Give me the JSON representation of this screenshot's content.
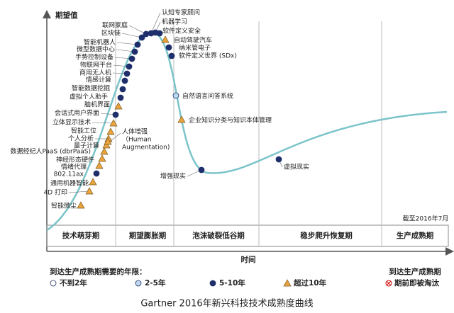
{
  "y_axis_label": "期望值",
  "x_axis_label": "时间",
  "as_of": "截至2016年7月",
  "phases": [
    "技术萌芽期",
    "期望膨胀期",
    "泡沫破裂低谷期",
    "稳步爬升恢复期",
    "生产成熟期"
  ],
  "legend": {
    "title": "到达生产成熟期需要的年限：",
    "items": [
      {
        "marker": "white",
        "label": "不到2年"
      },
      {
        "marker": "light",
        "label": "2-5年"
      },
      {
        "marker": "dark",
        "label": "5-10年"
      },
      {
        "marker": "triangle",
        "label": "超过10年"
      }
    ],
    "obsolete_title": "到达生产成熟期",
    "obsolete_label": "期前即被淘汰"
  },
  "nodes": [
    {
      "label": "智能微尘",
      "marker": "triangle"
    },
    {
      "label": "4D 打印",
      "marker": "triangle"
    },
    {
      "label": "通用机器智能",
      "marker": "triangle"
    },
    {
      "label": "802.11ax",
      "marker": "dark"
    },
    {
      "label": "情绪代理",
      "marker": "triangle"
    },
    {
      "label": "神经形态硬件",
      "marker": "triangle"
    },
    {
      "label": "数据经纪人PaaS (dbrPaaS)",
      "marker": "triangle"
    },
    {
      "label": "量子计算",
      "marker": "triangle"
    },
    {
      "label": "个人分析",
      "marker": "triangle"
    },
    {
      "label": "智能工位",
      "marker": "triangle"
    },
    {
      "label": "立体显示技术",
      "marker": "triangle"
    },
    {
      "label": "会话式用户界面",
      "marker": "dark"
    },
    {
      "label": "脑机界面",
      "marker": "triangle"
    },
    {
      "label": "虚拟个人助手",
      "marker": "dark"
    },
    {
      "label": "智能数据挖掘",
      "marker": "dark"
    },
    {
      "label": "情感计算",
      "marker": "dark"
    },
    {
      "label": "商用无人机",
      "marker": "dark"
    },
    {
      "label": "物联网平台",
      "marker": "dark"
    },
    {
      "label": "手势控制设备",
      "marker": "dark"
    },
    {
      "label": "微型数据中心",
      "marker": "dark"
    },
    {
      "label": "智能机器人",
      "marker": "dark"
    },
    {
      "label": "区块链",
      "marker": "dark"
    },
    {
      "label": "联网家庭",
      "marker": "dark"
    },
    {
      "label": "认知专家顾问",
      "marker": "dark"
    },
    {
      "label": "机器学习",
      "marker": "dark"
    },
    {
      "label": "软件定义安全",
      "marker": "dark"
    },
    {
      "label": "自动驾驶汽车",
      "marker": "triangle"
    },
    {
      "label": "纳米管电子",
      "marker": "dark"
    },
    {
      "label": "软件定义世界 (SDx)",
      "marker": "dark"
    },
    {
      "label": "自然语言问答系统",
      "marker": "light"
    },
    {
      "label": "企业知识分类与知识本体管理",
      "marker": "triangle"
    },
    {
      "label": "增强现实",
      "marker": "dark"
    },
    {
      "label": "虚拟现实",
      "marker": "dark"
    }
  ],
  "special_node": {
    "label_lines": [
      "人体增强",
      "（Human",
      "Augmentation)"
    ],
    "marker": "triangle"
  },
  "caption": "Gartner 2016年新兴科技技术成熟度曲线"
}
